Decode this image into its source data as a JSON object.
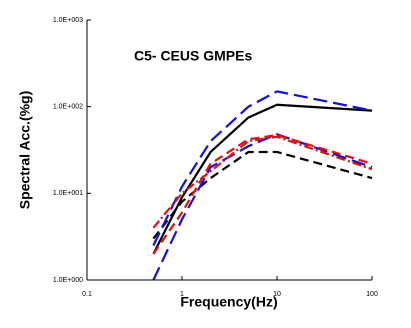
{
  "chart_data": {
    "type": "line",
    "title": "C5- CEUS GMPEs",
    "x_label": "Frequency(Hz)",
    "y_label": "Spectral Acc.(%g)",
    "x_scale": "log",
    "y_scale": "log",
    "xlim": [
      0.1,
      100
    ],
    "ylim": [
      1,
      1000
    ],
    "xticks": [
      0.1,
      1,
      10,
      100
    ],
    "yticks": [
      {
        "value": 1,
        "label": "1.0E+000"
      },
      {
        "value": 10,
        "label": "1.0E+001"
      },
      {
        "value": 100,
        "label": "1.0E+002"
      },
      {
        "value": 1000,
        "label": "1.0E+003"
      }
    ],
    "x": [
      0.5,
      1,
      2,
      5,
      10,
      100
    ],
    "series": [
      {
        "color": "#000000",
        "dash": "solid",
        "values": [
          2,
          9,
          30,
          75,
          105,
          90
        ]
      },
      {
        "color": "#000000",
        "dash": "dashed",
        "values": [
          3,
          8,
          15,
          30,
          30,
          15
        ]
      },
      {
        "color": "#1010e0",
        "dash": "longdash",
        "values": [
          2.5,
          12,
          40,
          100,
          150,
          90
        ]
      },
      {
        "color": "#1010e0",
        "dash": "longdash",
        "values": [
          1,
          5,
          20,
          35,
          48,
          20
        ]
      },
      {
        "color": "#e01010",
        "dash": "dashdot",
        "values": [
          4,
          10,
          18,
          40,
          45,
          19
        ]
      },
      {
        "color": "#e01010",
        "dash": "dashed",
        "values": [
          2,
          6,
          22,
          42,
          47,
          22
        ]
      }
    ]
  }
}
